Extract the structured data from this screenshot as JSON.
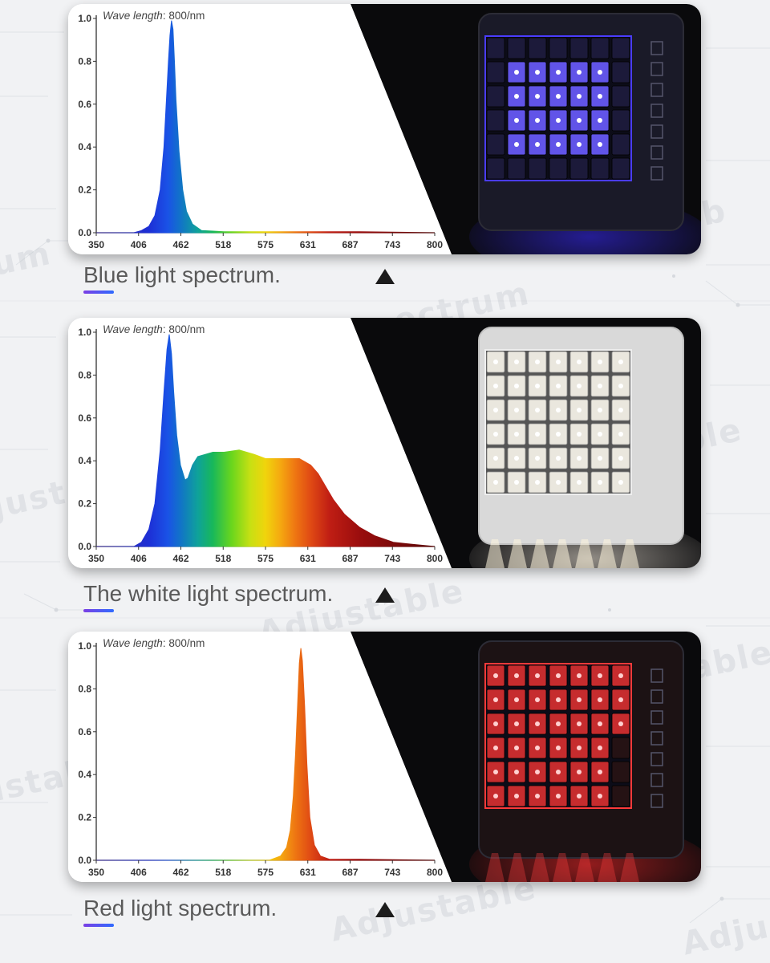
{
  "colors": {
    "background": "#f1f2f4",
    "caption_text": "#5a5a5a",
    "underline_from": "#7b3fe4",
    "underline_to": "#2f6bff",
    "blue_glow": "#3a2cff",
    "white_glow": "#fff6e8",
    "red_glow": "#ff2a2a"
  },
  "panels": [
    {
      "caption": "Blue light spectrum.",
      "wave_label_italic": "Wave length",
      "wave_label_rest": ": 800/nm",
      "photo": {
        "description_icon": "blue-led-grow-light-panel"
      }
    },
    {
      "caption": "The white light spectrum.",
      "wave_label_italic": "Wave length",
      "wave_label_rest": ": 800/nm",
      "photo": {
        "description_icon": "white-led-grow-light-panel"
      }
    },
    {
      "caption": "Red light spectrum.",
      "wave_label_italic": "Wave length",
      "wave_label_rest": ": 800/nm",
      "photo": {
        "description_icon": "red-led-grow-light-panel"
      }
    }
  ],
  "chart_data": [
    {
      "type": "area",
      "title": "",
      "xlabel": "",
      "ylabel": "",
      "x_ticks": [
        "350",
        "406",
        "462",
        "518",
        "575",
        "631",
        "687",
        "743",
        "800"
      ],
      "y_ticks": [
        "0.0",
        "0.2",
        "0.4",
        "0.6",
        "0.8",
        "1.0"
      ],
      "xlim": [
        350,
        800
      ],
      "ylim": [
        0,
        1.0
      ],
      "grid": false,
      "series": [
        {
          "x": [
            350,
            400,
            410,
            420,
            428,
            435,
            440,
            443,
            446,
            448,
            450,
            452,
            454,
            456,
            460,
            465,
            470,
            478,
            490,
            520,
            600,
            700,
            800
          ],
          "y": [
            0.0,
            0.0,
            0.01,
            0.03,
            0.08,
            0.2,
            0.4,
            0.6,
            0.8,
            0.92,
            0.99,
            0.95,
            0.8,
            0.62,
            0.38,
            0.2,
            0.1,
            0.04,
            0.01,
            0.005,
            0.005,
            0.005,
            0.0
          ]
        }
      ]
    },
    {
      "type": "area",
      "title": "",
      "xlabel": "",
      "ylabel": "",
      "x_ticks": [
        "350",
        "406",
        "462",
        "518",
        "575",
        "631",
        "687",
        "743",
        "800"
      ],
      "y_ticks": [
        "0.0",
        "0.2",
        "0.4",
        "0.6",
        "0.8",
        "1.0"
      ],
      "xlim": [
        350,
        800
      ],
      "ylim": [
        0,
        1.0
      ],
      "grid": false,
      "series": [
        {
          "x": [
            350,
            400,
            410,
            420,
            428,
            435,
            440,
            444,
            447,
            450,
            453,
            457,
            462,
            468,
            472,
            478,
            485,
            495,
            505,
            520,
            540,
            560,
            575,
            590,
            605,
            620,
            635,
            645,
            655,
            665,
            680,
            700,
            720,
            745,
            770,
            800
          ],
          "y": [
            0.0,
            0.0,
            0.02,
            0.08,
            0.2,
            0.45,
            0.72,
            0.92,
            0.99,
            0.9,
            0.72,
            0.52,
            0.38,
            0.31,
            0.32,
            0.38,
            0.42,
            0.43,
            0.44,
            0.44,
            0.45,
            0.43,
            0.41,
            0.41,
            0.41,
            0.41,
            0.38,
            0.34,
            0.28,
            0.22,
            0.15,
            0.09,
            0.05,
            0.02,
            0.01,
            0.0
          ]
        }
      ]
    },
    {
      "type": "area",
      "title": "",
      "xlabel": "",
      "ylabel": "",
      "x_ticks": [
        "350",
        "406",
        "462",
        "518",
        "575",
        "631",
        "687",
        "743",
        "800"
      ],
      "y_ticks": [
        "0.0",
        "0.2",
        "0.4",
        "0.6",
        "0.8",
        "1.0"
      ],
      "xlim": [
        350,
        800
      ],
      "ylim": [
        0,
        1.0
      ],
      "grid": false,
      "series": [
        {
          "x": [
            350,
            580,
            595,
            603,
            608,
            612,
            615,
            618,
            620,
            622,
            624,
            627,
            630,
            634,
            640,
            648,
            660,
            700,
            800
          ],
          "y": [
            0.0,
            0.0,
            0.02,
            0.06,
            0.14,
            0.3,
            0.5,
            0.75,
            0.92,
            0.99,
            0.93,
            0.72,
            0.45,
            0.2,
            0.07,
            0.02,
            0.005,
            0.005,
            0.0
          ]
        }
      ]
    }
  ]
}
